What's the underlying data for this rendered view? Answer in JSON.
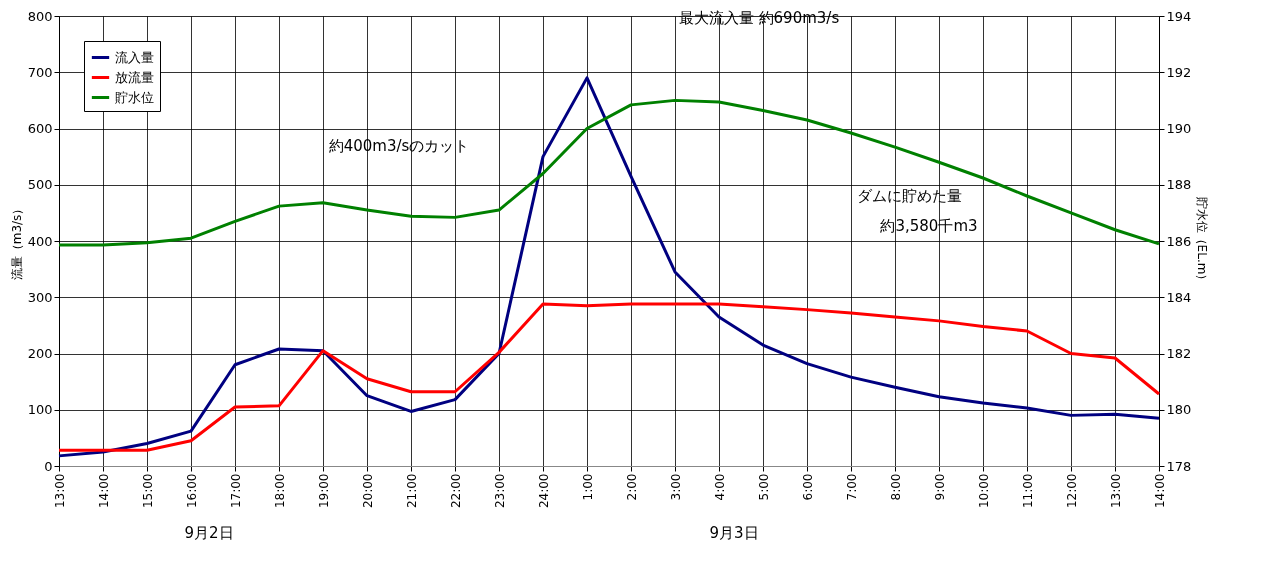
{
  "chart_data": {
    "type": "line",
    "categories": [
      "13:00",
      "14:00",
      "15:00",
      "16:00",
      "17:00",
      "18:00",
      "19:00",
      "20:00",
      "21:00",
      "22:00",
      "23:00",
      "24:00",
      "1:00",
      "2:00",
      "3:00",
      "4:00",
      "5:00",
      "6:00",
      "7:00",
      "8:00",
      "9:00",
      "10:00",
      "11:00",
      "12:00",
      "13:00",
      "14:00"
    ],
    "ylabel": "流量（m3/s）",
    "y2label": "貯水位（EL.m）",
    "series": [
      {
        "name": "流入量",
        "color": "#000080",
        "values": [
          18,
          25,
          40,
          62,
          180,
          208,
          205,
          125,
          97,
          118,
          200,
          550,
          690,
          515,
          345,
          265,
          215,
          182,
          158,
          140,
          123,
          112,
          103,
          90,
          92,
          85
        ]
      },
      {
        "name": "放流量",
        "color": "#ff0000",
        "values": [
          28,
          28,
          28,
          45,
          105,
          107,
          205,
          155,
          132,
          132,
          202,
          288,
          285,
          288,
          288,
          288,
          283,
          278,
          272,
          265,
          258,
          248,
          240,
          200,
          192,
          128
        ]
      },
      {
        "name": "貯水位",
        "color": "#008000",
        "axis": "y2",
        "values": [
          185.86,
          185.86,
          185.94,
          186.1,
          186.7,
          187.24,
          187.36,
          187.1,
          186.88,
          186.84,
          187.1,
          188.4,
          190.0,
          190.84,
          191.0,
          190.94,
          190.64,
          190.3,
          189.84,
          189.34,
          188.8,
          188.24,
          187.6,
          187.0,
          186.4,
          185.9
        ]
      }
    ],
    "ylim": [
      0,
      800
    ],
    "yticks": [
      0,
      100,
      200,
      300,
      400,
      500,
      600,
      700,
      800
    ],
    "y2lim": [
      178,
      194
    ],
    "y2ticks": [
      178,
      180,
      182,
      184,
      186,
      188,
      190,
      192,
      194
    ],
    "grid": true,
    "legend": "top left",
    "marker": "none",
    "line_style": "solid",
    "annotations": [
      "最大流入量 約690m3/s",
      "約400m3/sのカット",
      "ダムに貯めた量",
      "約3,580千m3",
      "9月2日",
      "9月3日"
    ]
  }
}
